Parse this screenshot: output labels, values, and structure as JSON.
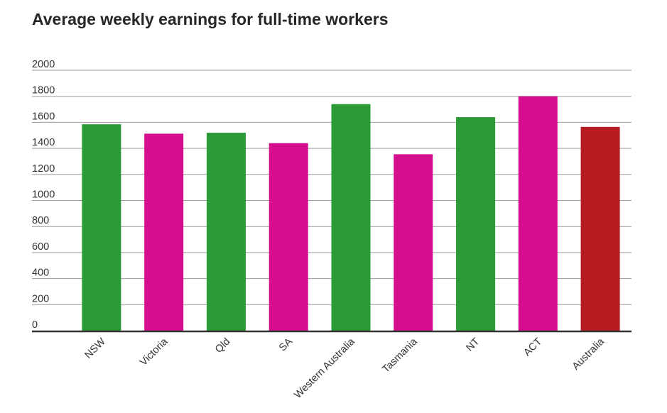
{
  "chart_data": {
    "type": "bar",
    "title": "Average weekly earnings for full-time workers",
    "xlabel": "",
    "ylabel": "",
    "ylim": [
      0,
      2000
    ],
    "yticks": [
      0,
      200,
      400,
      600,
      800,
      1000,
      1200,
      1400,
      1600,
      1800,
      2000
    ],
    "grid": true,
    "legend": "none",
    "categories": [
      "NSW",
      "Victoria",
      "Qld",
      "SA",
      "Western Australia",
      "Tasmania",
      "NT",
      "ACT",
      "Australia"
    ],
    "values": [
      1585,
      1513,
      1520,
      1440,
      1740,
      1355,
      1640,
      1800,
      1565
    ],
    "colors": [
      "#2a9b36",
      "#d40e8c",
      "#2a9b36",
      "#d40e8c",
      "#2a9b36",
      "#d40e8c",
      "#2a9b36",
      "#d40e8c",
      "#b81c22"
    ]
  }
}
